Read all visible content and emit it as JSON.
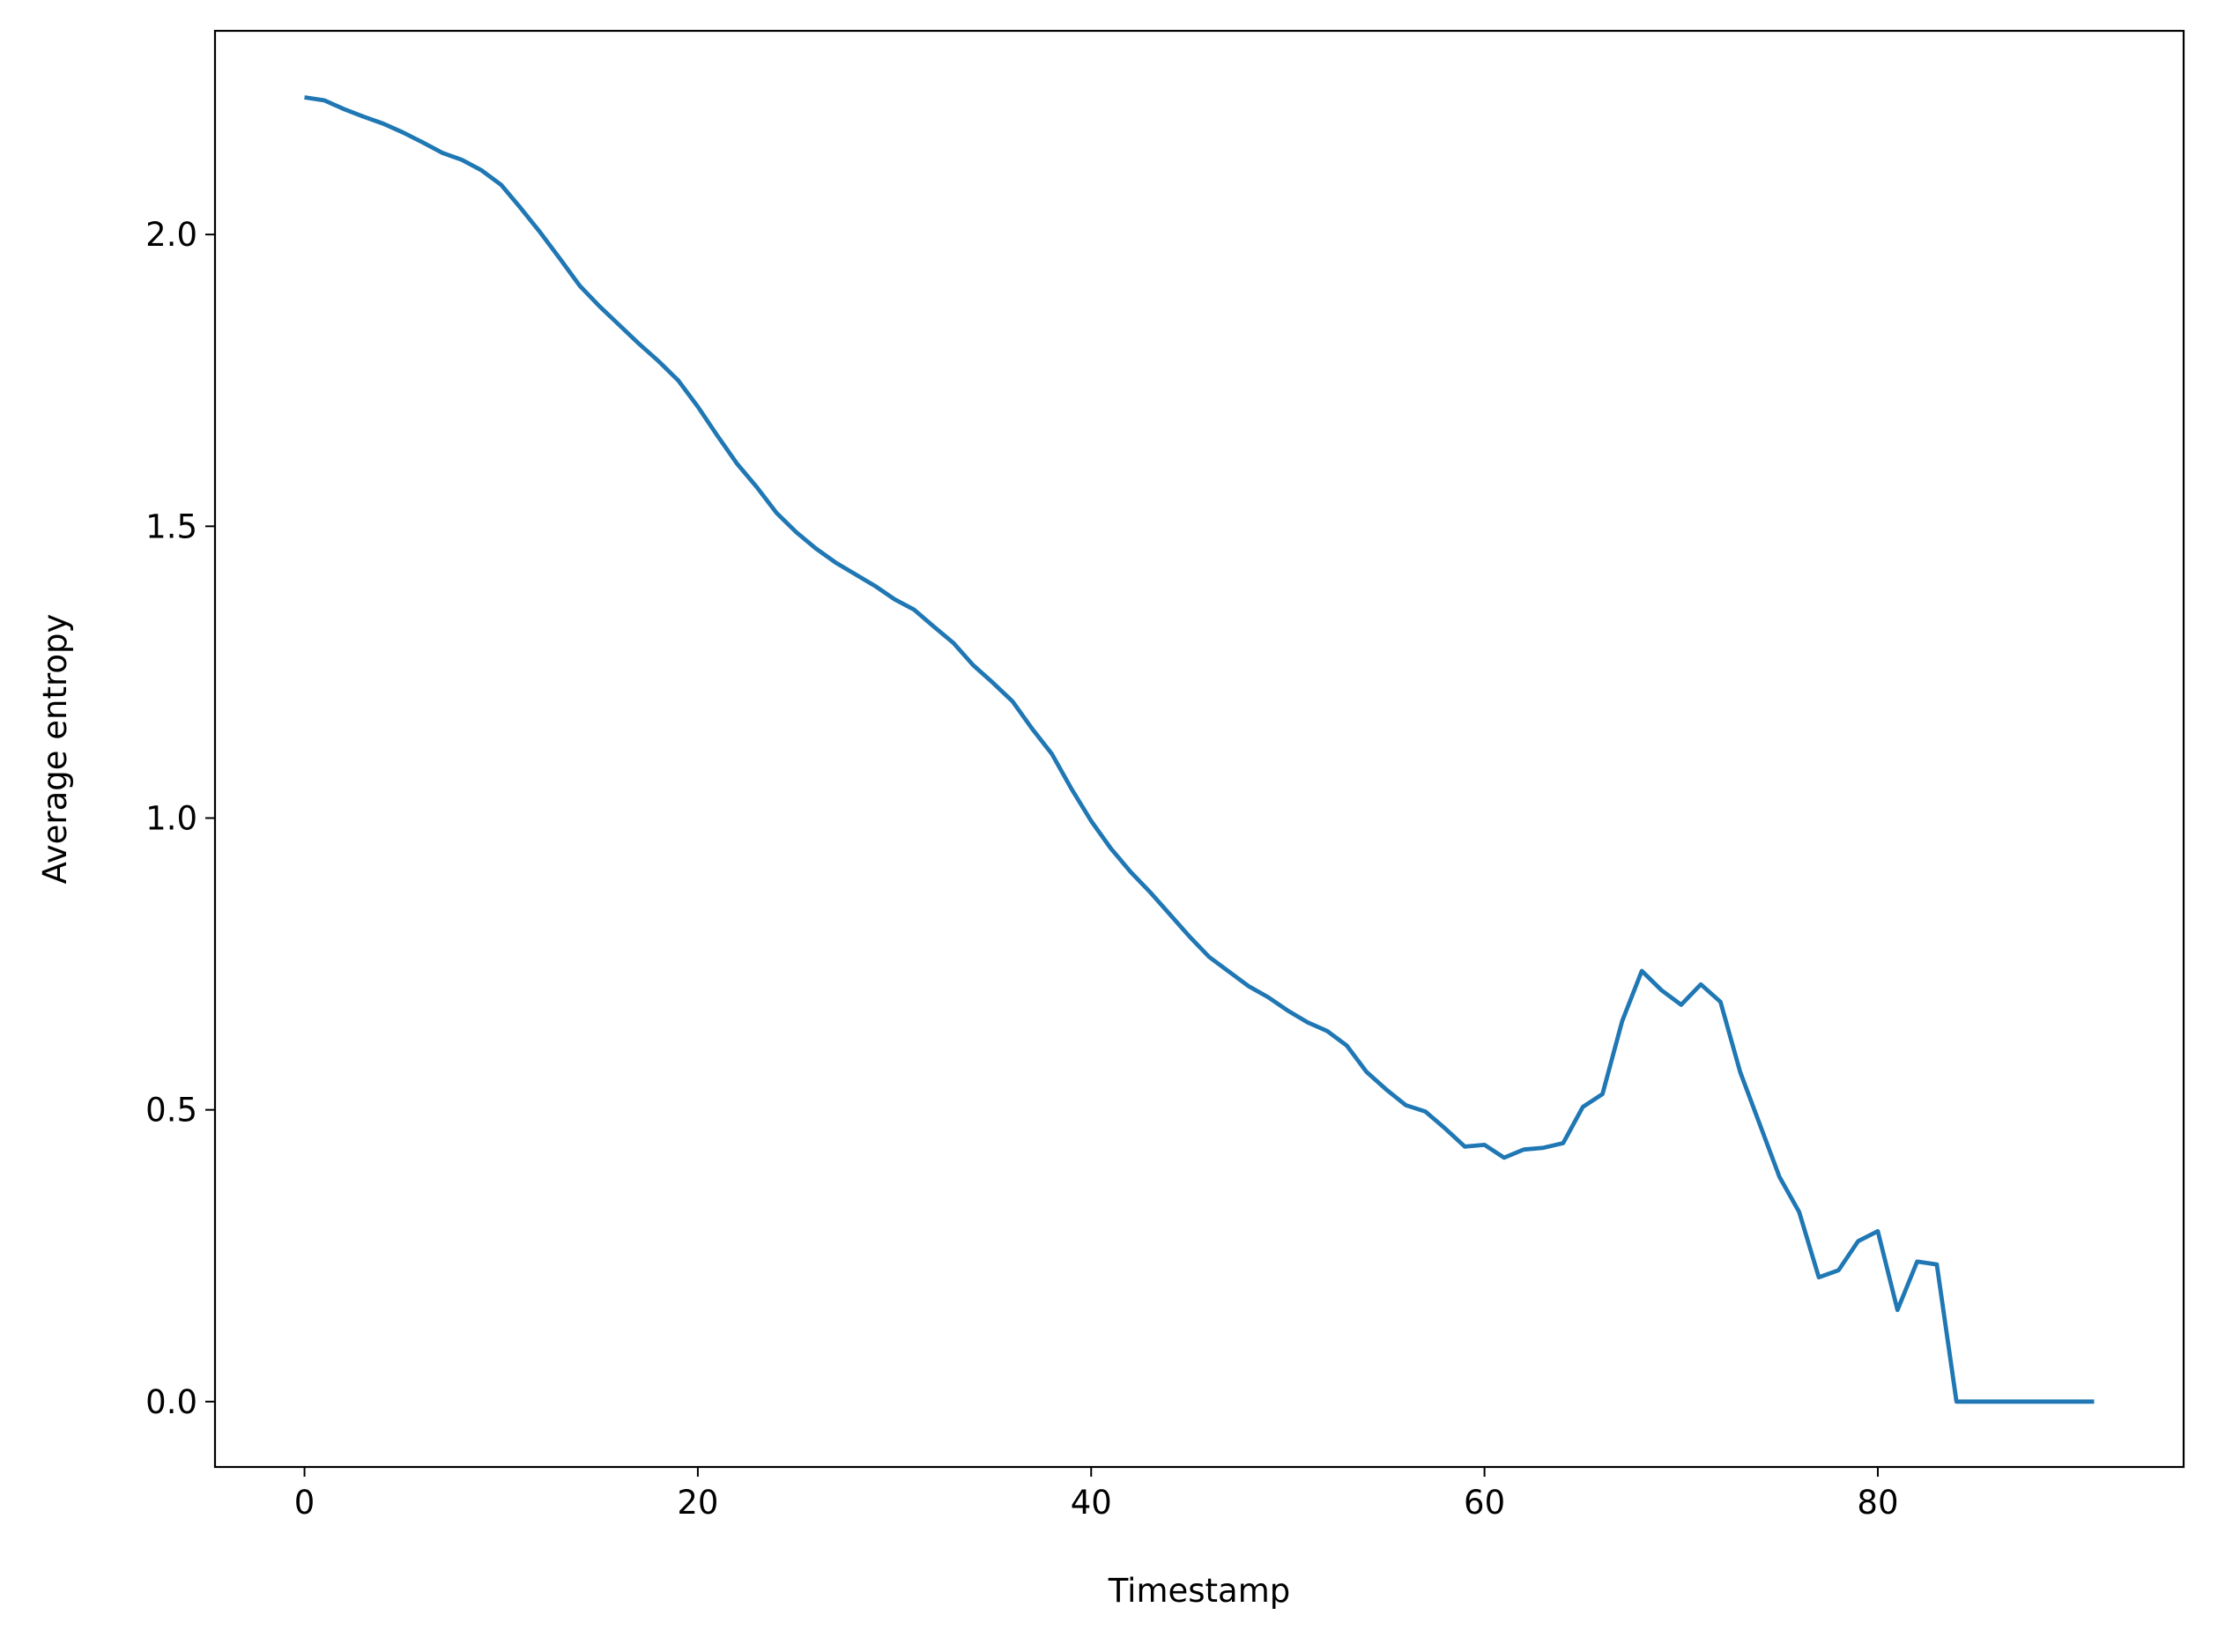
{
  "chart_data": {
    "type": "line",
    "xlabel": "Timestamp",
    "ylabel": "Average entropy",
    "x": [
      0,
      1,
      2,
      3,
      4,
      5,
      6,
      7,
      8,
      9,
      10,
      11,
      12,
      13,
      14,
      15,
      16,
      17,
      18,
      19,
      20,
      21,
      22,
      23,
      24,
      25,
      26,
      27,
      28,
      29,
      30,
      31,
      32,
      33,
      34,
      35,
      36,
      37,
      38,
      39,
      40,
      41,
      42,
      43,
      44,
      45,
      46,
      47,
      48,
      49,
      50,
      51,
      52,
      53,
      54,
      55,
      56,
      57,
      58,
      59,
      60,
      61,
      62,
      63,
      64,
      65,
      66,
      67,
      68,
      69,
      70,
      71,
      72,
      73,
      74,
      75,
      76,
      77,
      78,
      79,
      80,
      81,
      82,
      83,
      84,
      85,
      86,
      87,
      88,
      89,
      90,
      91
    ],
    "series": [
      {
        "color": "#1f77b4",
        "values": [
          2.235,
          2.23,
          2.215,
          2.202,
          2.19,
          2.175,
          2.158,
          2.14,
          2.128,
          2.11,
          2.085,
          2.045,
          2.003,
          1.958,
          1.912,
          1.877,
          1.845,
          1.813,
          1.783,
          1.75,
          1.705,
          1.655,
          1.607,
          1.567,
          1.523,
          1.49,
          1.462,
          1.438,
          1.418,
          1.398,
          1.375,
          1.357,
          1.328,
          1.3,
          1.262,
          1.232,
          1.2,
          1.153,
          1.11,
          1.05,
          0.995,
          0.948,
          0.908,
          0.873,
          0.835,
          0.797,
          0.762,
          0.737,
          0.712,
          0.693,
          0.67,
          0.65,
          0.635,
          0.61,
          0.565,
          0.535,
          0.508,
          0.497,
          0.468,
          0.437,
          0.44,
          0.418,
          0.432,
          0.435,
          0.443,
          0.505,
          0.527,
          0.652,
          0.738,
          0.705,
          0.68,
          0.715,
          0.685,
          0.565,
          0.475,
          0.385,
          0.325,
          0.213,
          0.225,
          0.275,
          0.292,
          0.157,
          0.24,
          0.235,
          0,
          0,
          0,
          0,
          0,
          0,
          0,
          0
        ]
      }
    ],
    "xlim": [
      -4.55,
      95.55
    ],
    "ylim": [
      -0.112,
      2.349
    ],
    "xticks": [
      0,
      20,
      40,
      60,
      80
    ],
    "yticks": [
      {
        "value": 0,
        "label": "0.0"
      },
      {
        "value": 0.5,
        "label": "0.5"
      },
      {
        "value": 1,
        "label": "1.0"
      },
      {
        "value": 1.5,
        "label": "1.5"
      },
      {
        "value": 2,
        "label": "2.0"
      }
    ]
  }
}
